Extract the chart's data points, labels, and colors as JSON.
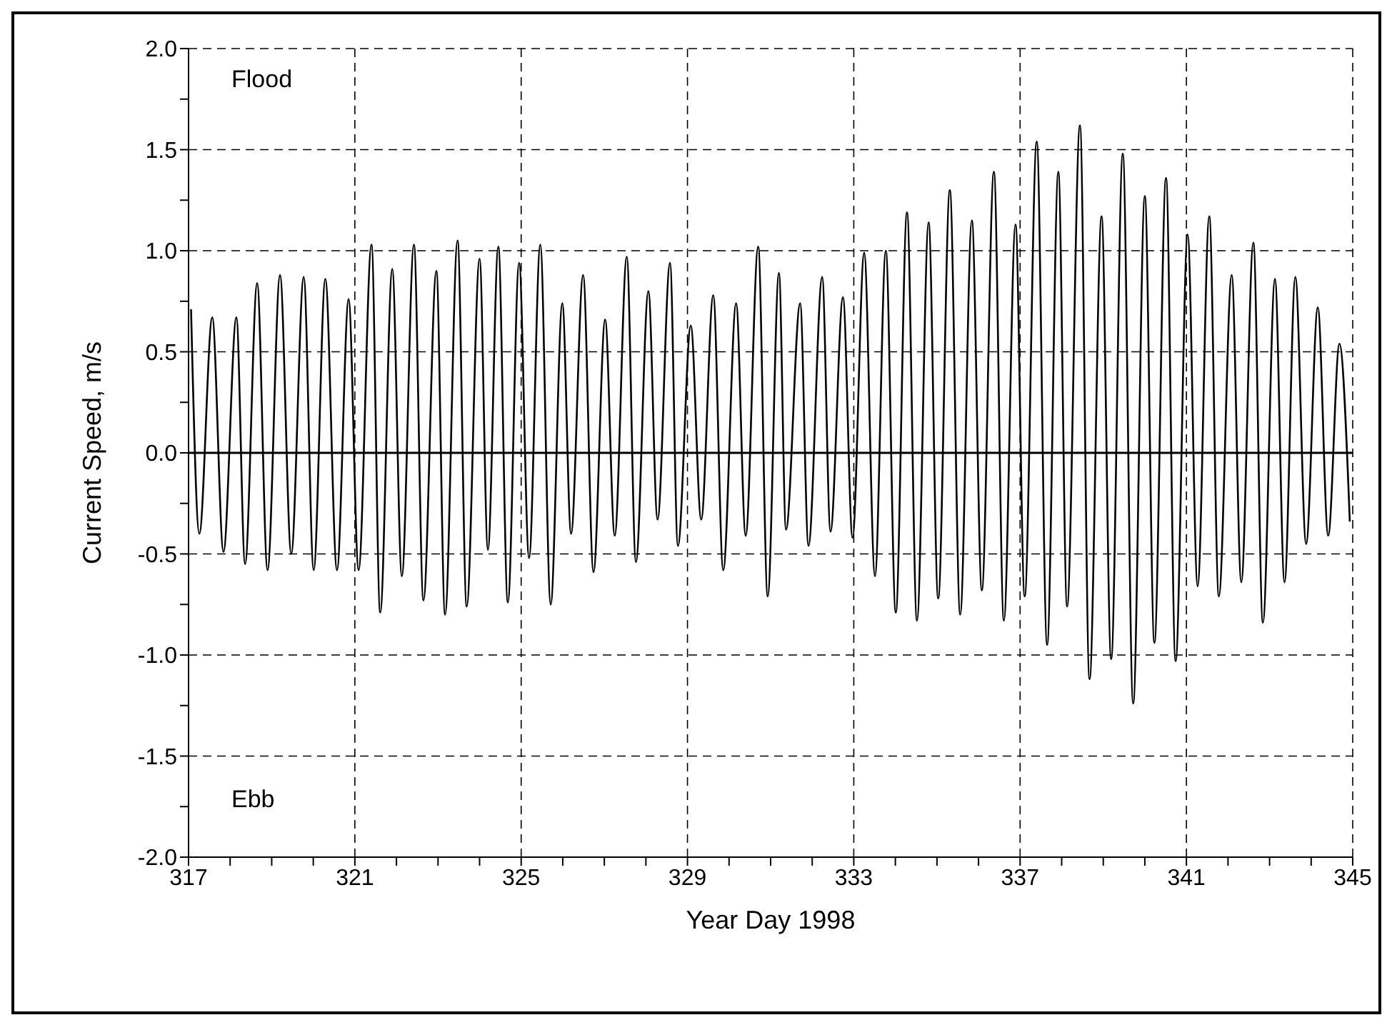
{
  "chart_data": {
    "type": "line",
    "xlabel": "Year Day 1998",
    "ylabel": "Current Speed, m/s",
    "annotations": [
      "Flood",
      "Ebb"
    ],
    "xlim": [
      317,
      345
    ],
    "xticks": [
      317,
      {
        "value": 318,
        "label": null
      },
      {
        "value": 319,
        "label": null
      },
      {
        "value": 320,
        "label": null
      },
      321,
      {
        "value": 322,
        "label": null
      },
      {
        "value": 323,
        "label": null
      },
      {
        "value": 324,
        "label": null
      },
      325,
      {
        "value": 326,
        "label": null
      },
      {
        "value": 327,
        "label": null
      },
      {
        "value": 328,
        "label": null
      },
      329,
      {
        "value": 330,
        "label": null
      },
      {
        "value": 331,
        "label": null
      },
      {
        "value": 332,
        "label": null
      },
      333,
      {
        "value": 334,
        "label": null
      },
      {
        "value": 335,
        "label": null
      },
      {
        "value": 336,
        "label": null
      },
      337,
      {
        "value": 338,
        "label": null
      },
      {
        "value": 339,
        "label": null
      },
      {
        "value": 340,
        "label": null
      },
      341,
      {
        "value": 342,
        "label": null
      },
      {
        "value": 343,
        "label": null
      },
      {
        "value": 344,
        "label": null
      },
      345
    ],
    "ylim": [
      -2,
      2
    ],
    "yticks": [
      {
        "value": -2,
        "label": "-2.0"
      },
      {
        "value": -1.75,
        "label": null
      },
      {
        "value": -1.5,
        "label": "-1.5"
      },
      {
        "value": -1.25,
        "label": null
      },
      {
        "value": -1,
        "label": "-1.0"
      },
      {
        "value": -0.75,
        "label": null
      },
      {
        "value": -0.5,
        "label": "-0.5"
      },
      {
        "value": -0.25,
        "label": null
      },
      {
        "value": 0,
        "label": "0.0"
      },
      {
        "value": 0.25,
        "label": null
      },
      {
        "value": 0.5,
        "label": "0.5"
      },
      {
        "value": 0.75,
        "label": null
      },
      {
        "value": 1,
        "label": "1.0"
      },
      {
        "value": 1.25,
        "label": null
      },
      {
        "value": 1.5,
        "label": "1.5"
      },
      {
        "value": 1.75,
        "label": null
      },
      {
        "value": 2,
        "label": "2.0"
      }
    ],
    "grid": true,
    "marker": "none",
    "line_style": "solid",
    "ref_lines": [
      {
        "axis": "y",
        "value": 0,
        "color": "#000000",
        "line_style": "solid"
      }
    ],
    "series": [
      {
        "color": "#000000",
        "x": [
          317.06,
          317.26,
          317.57,
          317.84,
          318.15,
          318.36,
          318.65,
          318.9,
          319.2,
          319.47,
          319.77,
          320.01,
          320.29,
          320.57,
          320.85,
          321.09,
          321.4,
          321.61,
          321.9,
          322.13,
          322.42,
          322.65,
          322.96,
          323.17,
          323.47,
          323.69,
          324.0,
          324.2,
          324.45,
          324.68,
          324.95,
          325.19,
          325.46,
          325.71,
          325.99,
          326.2,
          326.49,
          326.74,
          327.02,
          327.25,
          327.54,
          327.76,
          328.06,
          328.28,
          328.58,
          328.77,
          329.08,
          329.33,
          329.62,
          329.86,
          330.17,
          330.4,
          330.7,
          330.93,
          331.2,
          331.37,
          331.71,
          331.91,
          332.24,
          332.44,
          332.74,
          332.97,
          333.25,
          333.51,
          333.77,
          334.01,
          334.28,
          334.52,
          334.8,
          335.03,
          335.31,
          335.56,
          335.84,
          336.08,
          336.37,
          336.61,
          336.89,
          337.11,
          337.4,
          337.65,
          337.92,
          338.13,
          338.44,
          338.67,
          338.96,
          339.19,
          339.47,
          339.72,
          340.0,
          340.23,
          340.51,
          340.74,
          341.03,
          341.27,
          341.55,
          341.78,
          342.09,
          342.32,
          342.61,
          342.84,
          343.13,
          343.36,
          343.62,
          343.88,
          344.16,
          344.41,
          344.68,
          344.93
        ],
        "values": [
          0.71,
          -0.4,
          0.67,
          -0.49,
          0.67,
          -0.55,
          0.84,
          -0.58,
          0.88,
          -0.5,
          0.87,
          -0.58,
          0.86,
          -0.58,
          0.76,
          -0.58,
          1.03,
          -0.79,
          0.91,
          -0.61,
          1.03,
          -0.73,
          0.9,
          -0.8,
          1.05,
          -0.76,
          0.96,
          -0.48,
          1.02,
          -0.74,
          0.94,
          -0.52,
          1.03,
          -0.75,
          0.74,
          -0.4,
          0.88,
          -0.59,
          0.66,
          -0.41,
          0.97,
          -0.54,
          0.8,
          -0.33,
          0.94,
          -0.46,
          0.63,
          -0.33,
          0.78,
          -0.58,
          0.74,
          -0.41,
          1.02,
          -0.71,
          0.89,
          -0.38,
          0.74,
          -0.46,
          0.87,
          -0.39,
          0.77,
          -0.42,
          0.99,
          -0.61,
          1.0,
          -0.79,
          1.19,
          -0.83,
          1.14,
          -0.72,
          1.3,
          -0.8,
          1.15,
          -0.68,
          1.39,
          -0.83,
          1.13,
          -0.71,
          1.54,
          -0.95,
          1.39,
          -0.76,
          1.62,
          -1.12,
          1.17,
          -1.02,
          1.48,
          -1.24,
          1.27,
          -0.94,
          1.36,
          -1.03,
          1.08,
          -0.66,
          1.17,
          -0.71,
          0.88,
          -0.64,
          1.04,
          -0.84,
          0.86,
          -0.64,
          0.87,
          -0.45,
          0.72,
          -0.41,
          0.54,
          -0.34
        ]
      }
    ]
  }
}
